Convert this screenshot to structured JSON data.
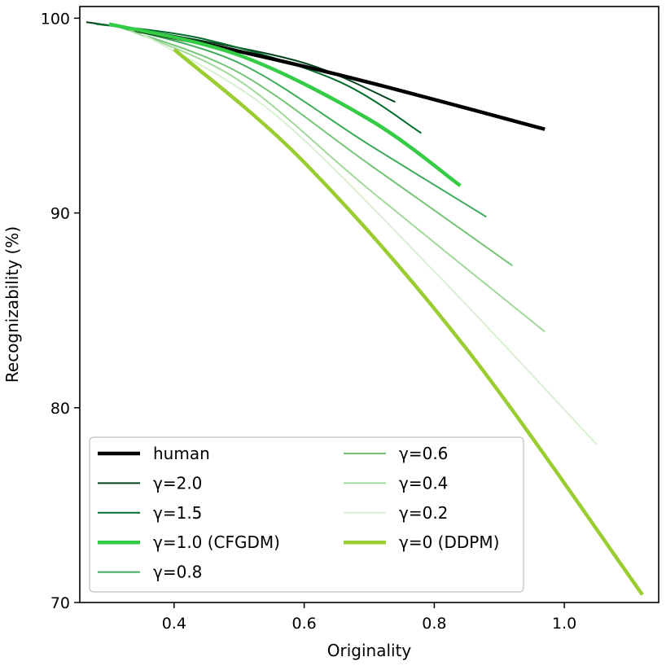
{
  "chart_data": {
    "type": "line",
    "title": "",
    "xlabel": "Originality",
    "ylabel": "Recognizability (%)",
    "xlim": [
      0.255,
      1.145
    ],
    "ylim": [
      70,
      100.6
    ],
    "xticks": [
      0.4,
      0.6,
      0.8,
      1.0
    ],
    "xtick_labels": [
      "0.4",
      "0.6",
      "0.8",
      "1.0"
    ],
    "yticks": [
      70,
      80,
      90,
      100
    ],
    "ytick_labels": [
      "70",
      "80",
      "90",
      "100"
    ],
    "grid": false,
    "legend_position": "bottom-left",
    "series": [
      {
        "name": "human",
        "color": "#000000",
        "width": 4.5,
        "x": [
          0.34,
          0.5,
          0.7,
          0.97
        ],
        "y": [
          99.4,
          98.3,
          96.7,
          94.3
        ]
      },
      {
        "name": "γ=2.0",
        "color": "#00441b",
        "width": 2,
        "x": [
          0.265,
          0.4,
          0.6,
          0.74
        ],
        "y": [
          99.8,
          99.1,
          97.7,
          95.7
        ]
      },
      {
        "name": "γ=1.5",
        "color": "#006d2c",
        "width": 2,
        "x": [
          0.28,
          0.45,
          0.65,
          0.78
        ],
        "y": [
          99.7,
          98.9,
          96.8,
          94.1
        ]
      },
      {
        "name": "γ=1.0 (CFGDM)",
        "color": "#33cc44",
        "width": 4.5,
        "x": [
          0.3,
          0.5,
          0.7,
          0.84
        ],
        "y": [
          99.7,
          98.1,
          94.8,
          91.4
        ]
      },
      {
        "name": "γ=0.8",
        "color": "#41ab5d",
        "width": 2,
        "x": [
          0.31,
          0.5,
          0.7,
          0.88
        ],
        "y": [
          99.6,
          97.7,
          93.5,
          89.8
        ]
      },
      {
        "name": "γ=0.6",
        "color": "#74c476",
        "width": 2,
        "x": [
          0.32,
          0.5,
          0.7,
          0.92
        ],
        "y": [
          99.5,
          97.2,
          92.5,
          87.3
        ]
      },
      {
        "name": "γ=0.4",
        "color": "#a1d99b",
        "width": 2,
        "x": [
          0.33,
          0.5,
          0.7,
          0.97
        ],
        "y": [
          99.4,
          96.8,
          91.2,
          83.9
        ]
      },
      {
        "name": "γ=0.2",
        "color": "#d9f0d3",
        "width": 2,
        "x": [
          0.35,
          0.55,
          0.8,
          1.05
        ],
        "y": [
          99.2,
          95.2,
          87.0,
          78.1
        ]
      },
      {
        "name": "γ=0 (DDPM)",
        "color": "#9acd32",
        "width": 4.5,
        "x": [
          0.4,
          0.6,
          0.85,
          1.12
        ],
        "y": [
          98.4,
          92.6,
          83.0,
          70.4
        ]
      }
    ]
  }
}
